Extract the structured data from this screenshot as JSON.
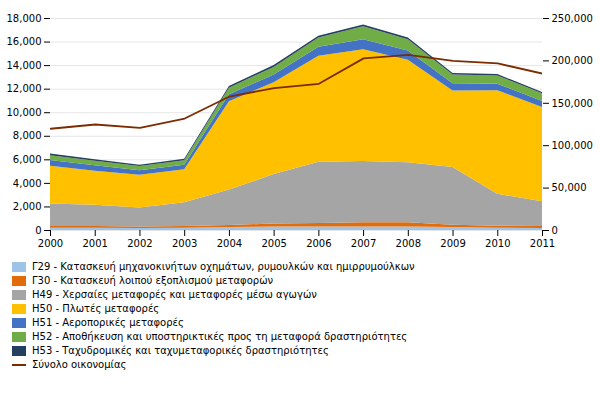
{
  "chart_data": {
    "type": "area",
    "stacked": true,
    "grid": true,
    "legend": "bottom",
    "x": [
      2000,
      2001,
      2002,
      2003,
      2004,
      2005,
      2006,
      2007,
      2008,
      2009,
      2010,
      2011
    ],
    "xlim": [
      2000,
      2011
    ],
    "xticks": [
      2000,
      2001,
      2002,
      2003,
      2004,
      2005,
      2006,
      2007,
      2008,
      2009,
      2010,
      2011
    ],
    "ylim": [
      0,
      18000
    ],
    "yticks": [
      0,
      {
        "value": 2000,
        "label": "2,000"
      },
      {
        "value": 4000,
        "label": "4,000"
      },
      {
        "value": 6000,
        "label": "6,000"
      },
      {
        "value": 8000,
        "label": "8,000"
      },
      {
        "value": 10000,
        "label": "10,000"
      },
      {
        "value": 12000,
        "label": "12,000"
      },
      {
        "value": 14000,
        "label": "14,000"
      },
      {
        "value": 16000,
        "label": "16,000"
      },
      {
        "value": 18000,
        "label": "18,000"
      }
    ],
    "y2lim": [
      0,
      250000
    ],
    "y2ticks": [
      0,
      {
        "value": 50000,
        "label": "50,000"
      },
      {
        "value": 100000,
        "label": "100,000"
      },
      {
        "value": 150000,
        "label": "150,000"
      },
      {
        "value": 200000,
        "label": "200,000"
      },
      {
        "value": 250000,
        "label": "250,000"
      }
    ],
    "series": [
      {
        "name": "Γ29 - Κατασκευή μηχανοκινήτων οχημάτων, ρυμουλκών και ημιρρυμούλκων",
        "type": "area",
        "color": "#9DC3E6",
        "values": [
          200,
          200,
          180,
          200,
          250,
          300,
          300,
          300,
          300,
          250,
          200,
          180
        ]
      },
      {
        "name": "Γ30 - Κατασκευή λοιπού εξοπλισμού μεταφορών",
        "type": "area",
        "color": "#E36C0A",
        "values": [
          150,
          140,
          120,
          150,
          180,
          250,
          300,
          350,
          350,
          200,
          170,
          160
        ]
      },
      {
        "name": "Η49 - Χερσαίες μεταφορές και μεταφορές μέσω αγωγών",
        "type": "area",
        "color": "#A5A5A5",
        "values": [
          1900,
          1800,
          1600,
          2000,
          3000,
          4200,
          5200,
          5200,
          5100,
          4900,
          2700,
          2100
        ]
      },
      {
        "name": "Η50 - Πλωτές μεταφορές",
        "type": "area",
        "color": "#FFC000",
        "values": [
          3200,
          2900,
          2800,
          2800,
          7500,
          7800,
          9000,
          9500,
          8700,
          6500,
          8800,
          8000
        ]
      },
      {
        "name": "Η51 - Αεροπορικές μεταφορές",
        "type": "area",
        "color": "#4472C4",
        "values": [
          500,
          450,
          380,
          400,
          600,
          650,
          750,
          850,
          800,
          600,
          550,
          520
        ]
      },
      {
        "name": "Η52 - Αποθήκευση και υποστηρικτικές προς τη μεταφορά δραστηριότητες",
        "type": "area",
        "color": "#70AD47",
        "values": [
          400,
          380,
          350,
          380,
          550,
          650,
          800,
          1100,
          950,
          750,
          700,
          650
        ]
      },
      {
        "name": "Η53 - Ταχυδρομικές και ταχυμεταφορικές δραστηριότητες",
        "type": "area",
        "color": "#243F60",
        "values": [
          150,
          130,
          120,
          120,
          150,
          150,
          150,
          150,
          150,
          130,
          120,
          110
        ]
      },
      {
        "name": "Σύνολο οικονομίας",
        "type": "line",
        "axis": "y2",
        "color": "#7B2C00",
        "values": [
          120000,
          125000,
          121000,
          132000,
          158000,
          168000,
          173000,
          203000,
          207000,
          200000,
          197000,
          185000
        ]
      }
    ]
  }
}
